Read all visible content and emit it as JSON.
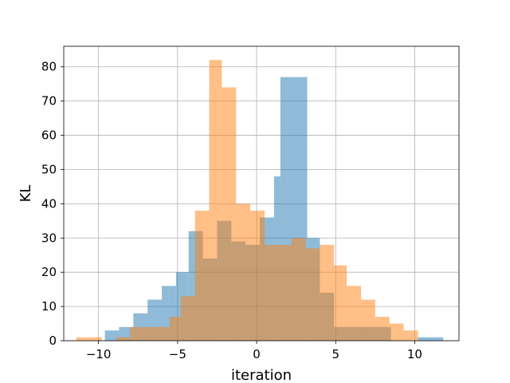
{
  "chart_data": {
    "type": "histogram",
    "xlabel": "iteration",
    "ylabel": "KL",
    "xlim": [
      -12.2,
      12.8
    ],
    "ylim": [
      0,
      86
    ],
    "xticks": [
      -10,
      -5,
      0,
      5,
      10
    ],
    "yticks": [
      0,
      10,
      20,
      30,
      40,
      50,
      60,
      70,
      80
    ],
    "grid": true,
    "series": [
      {
        "color": "#1f77b4",
        "opacity": 0.5,
        "bins": [
          {
            "x0": -9.6,
            "x1": -8.7,
            "count": 3
          },
          {
            "x0": -8.7,
            "x1": -7.8,
            "count": 4
          },
          {
            "x0": -7.8,
            "x1": -6.9,
            "count": 8
          },
          {
            "x0": -6.9,
            "x1": -6.0,
            "count": 12
          },
          {
            "x0": -6.0,
            "x1": -5.1,
            "count": 16
          },
          {
            "x0": -5.1,
            "x1": -4.3,
            "count": 20
          },
          {
            "x0": -4.3,
            "x1": -3.4,
            "count": 32
          },
          {
            "x0": -3.4,
            "x1": -2.5,
            "count": 24
          },
          {
            "x0": -2.5,
            "x1": -1.6,
            "count": 35
          },
          {
            "x0": -1.6,
            "x1": -0.7,
            "count": 29
          },
          {
            "x0": -0.7,
            "x1": 0.2,
            "count": 28
          },
          {
            "x0": 0.2,
            "x1": 1.1,
            "count": 36
          },
          {
            "x0": 1.1,
            "x1": 1.5,
            "count": 48
          },
          {
            "x0": 1.5,
            "x1": 3.2,
            "count": 77
          },
          {
            "x0": 3.2,
            "x1": 4.0,
            "count": 30
          },
          {
            "x0": 4.0,
            "x1": 4.9,
            "count": 14
          },
          {
            "x0": 4.9,
            "x1": 8.5,
            "count": 4
          },
          {
            "x0": 8.5,
            "x1": 10.2,
            "count": 0
          },
          {
            "x0": 10.2,
            "x1": 11.8,
            "count": 1
          }
        ]
      },
      {
        "color": "#ff7f0e",
        "opacity": 0.5,
        "bins": [
          {
            "x0": -11.4,
            "x1": -9.8,
            "count": 1
          },
          {
            "x0": -9.8,
            "x1": -8.9,
            "count": 0
          },
          {
            "x0": -8.9,
            "x1": -8.0,
            "count": 1
          },
          {
            "x0": -8.0,
            "x1": -5.5,
            "count": 4
          },
          {
            "x0": -5.5,
            "x1": -4.8,
            "count": 7
          },
          {
            "x0": -4.8,
            "x1": -3.9,
            "count": 13
          },
          {
            "x0": -3.9,
            "x1": -3.0,
            "count": 38
          },
          {
            "x0": -3.0,
            "x1": -2.2,
            "count": 82
          },
          {
            "x0": -2.2,
            "x1": -1.3,
            "count": 74
          },
          {
            "x0": -1.3,
            "x1": -0.4,
            "count": 40
          },
          {
            "x0": -0.4,
            "x1": 0.5,
            "count": 38
          },
          {
            "x0": 0.5,
            "x1": 2.2,
            "count": 28
          },
          {
            "x0": 2.2,
            "x1": 3.1,
            "count": 30
          },
          {
            "x0": 3.1,
            "x1": 4.0,
            "count": 27
          },
          {
            "x0": 4.0,
            "x1": 4.9,
            "count": 28
          },
          {
            "x0": 4.9,
            "x1": 5.7,
            "count": 22
          },
          {
            "x0": 5.7,
            "x1": 6.6,
            "count": 16
          },
          {
            "x0": 6.6,
            "x1": 7.5,
            "count": 12
          },
          {
            "x0": 7.5,
            "x1": 8.4,
            "count": 7
          },
          {
            "x0": 8.4,
            "x1": 9.3,
            "count": 5
          },
          {
            "x0": 9.3,
            "x1": 10.2,
            "count": 3
          }
        ]
      }
    ]
  }
}
